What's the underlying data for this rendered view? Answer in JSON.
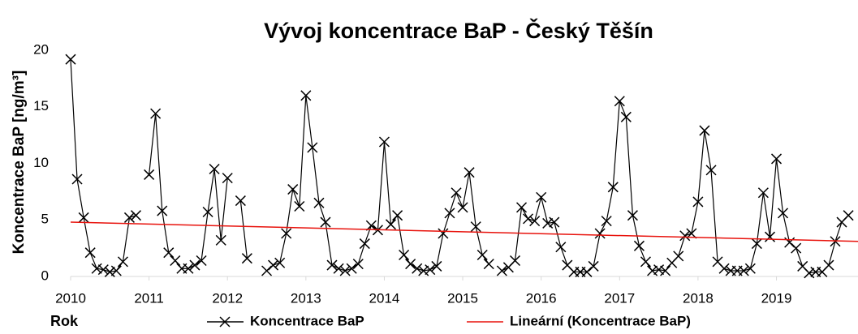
{
  "chart_data": {
    "type": "line",
    "title": "Vývoj koncentrace BaP - Český Těšín",
    "ylabel": "Koncentrace BaP [ng/m³]",
    "xlabel": "Rok",
    "xlim": [
      2010,
      2020.04
    ],
    "xticks": [
      2010,
      2011,
      2012,
      2013,
      2014,
      2015,
      2016,
      2017,
      2018,
      2019
    ],
    "ylim": [
      0,
      20
    ],
    "yticks": [
      0,
      5,
      10,
      15,
      20
    ],
    "grid": false,
    "x": [
      2010,
      2010.083,
      2010.167,
      2010.25,
      2010.333,
      2010.417,
      2010.5,
      2010.583,
      2010.667,
      2010.75,
      2010.833,
      2010.917,
      2011,
      2011.083,
      2011.167,
      2011.25,
      2011.333,
      2011.417,
      2011.5,
      2011.583,
      2011.667,
      2011.75,
      2011.833,
      2011.917,
      2012,
      2012.083,
      2012.167,
      2012.25,
      2012.333,
      2012.417,
      2012.5,
      2012.583,
      2012.667,
      2012.75,
      2012.833,
      2012.917,
      2013,
      2013.083,
      2013.167,
      2013.25,
      2013.333,
      2013.417,
      2013.5,
      2013.583,
      2013.667,
      2013.75,
      2013.833,
      2013.917,
      2014,
      2014.083,
      2014.167,
      2014.25,
      2014.333,
      2014.417,
      2014.5,
      2014.583,
      2014.667,
      2014.75,
      2014.833,
      2014.917,
      2015,
      2015.083,
      2015.167,
      2015.25,
      2015.333,
      2015.417,
      2015.5,
      2015.583,
      2015.667,
      2015.75,
      2015.833,
      2015.917,
      2016,
      2016.083,
      2016.167,
      2016.25,
      2016.333,
      2016.417,
      2016.5,
      2016.583,
      2016.667,
      2016.75,
      2016.833,
      2016.917,
      2017,
      2017.083,
      2017.167,
      2017.25,
      2017.333,
      2017.417,
      2017.5,
      2017.583,
      2017.667,
      2017.75,
      2017.833,
      2017.917,
      2018,
      2018.083,
      2018.167,
      2018.25,
      2018.333,
      2018.417,
      2018.5,
      2018.583,
      2018.667,
      2018.75,
      2018.833,
      2018.917,
      2019,
      2019.083,
      2019.167,
      2019.25,
      2019.333,
      2019.417,
      2019.5,
      2019.583,
      2019.667,
      2019.75,
      2019.833,
      2019.917
    ],
    "series": [
      {
        "name": "Koncentrace BaP",
        "color": "#000000",
        "marker": "x",
        "values": [
          19.2,
          8.6,
          5.2,
          2.1,
          0.7,
          0.6,
          0.4,
          0.5,
          1.3,
          5.2,
          5.4,
          null,
          9.0,
          14.4,
          5.8,
          2.1,
          1.4,
          0.7,
          0.7,
          1.0,
          1.4,
          5.7,
          9.5,
          3.2,
          8.7,
          null,
          6.7,
          1.6,
          null,
          null,
          0.5,
          1.0,
          1.2,
          3.8,
          7.7,
          6.2,
          16.0,
          11.4,
          6.5,
          4.8,
          1.0,
          0.7,
          0.5,
          0.7,
          1.1,
          2.9,
          4.5,
          4.1,
          11.9,
          4.6,
          5.4,
          1.9,
          1.1,
          0.7,
          0.5,
          0.6,
          0.9,
          3.8,
          5.6,
          7.4,
          6.1,
          9.2,
          4.4,
          1.9,
          1.1,
          null,
          0.5,
          0.8,
          1.4,
          6.1,
          5.1,
          4.9,
          7.0,
          4.7,
          4.8,
          2.6,
          1.0,
          0.4,
          0.4,
          0.4,
          0.9,
          3.8,
          4.9,
          7.9,
          15.5,
          14.1,
          5.4,
          2.7,
          1.3,
          0.5,
          0.6,
          0.5,
          1.2,
          1.8,
          3.6,
          3.8,
          6.6,
          12.9,
          9.4,
          1.3,
          0.7,
          0.5,
          0.5,
          0.5,
          0.7,
          2.9,
          7.4,
          3.5,
          10.4,
          5.6,
          3.0,
          2.5,
          0.9,
          0.3,
          0.4,
          0.4,
          1.0,
          3.1,
          4.8,
          5.4
        ]
      },
      {
        "name": "Lineární (Koncentrace BaP)",
        "color": "#e8120c",
        "x": [
          2010,
          2020.04
        ],
        "values": [
          4.8,
          3.1
        ]
      }
    ]
  }
}
